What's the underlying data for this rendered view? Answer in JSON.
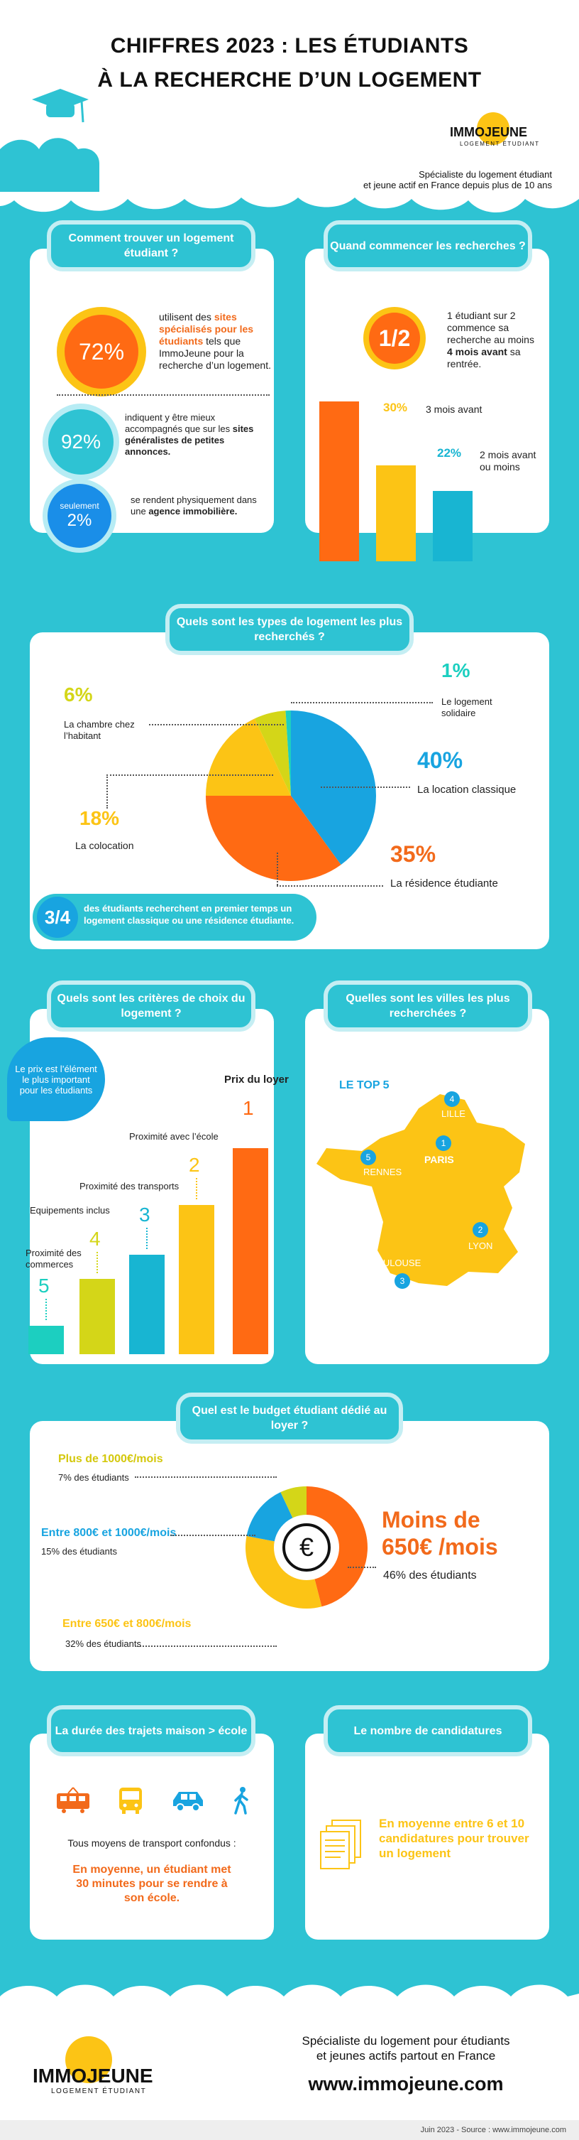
{
  "header": {
    "title_line1": "CHIFFRES 2023 : LES ÉTUDIANTS",
    "title_line2": "À LA RECHERCHE D’UN LOGEMENT",
    "logo_word": "IMMOJEUNE",
    "logo_sub": "LOGEMENT ÉTUDIANT",
    "tagline_line1": "Spécialiste du logement étudiant",
    "tagline_line2": "et jeune actif en France depuis plus de 10 ans"
  },
  "find": {
    "title": "Comment trouver un logement étudiant ?",
    "c1_value": "72%",
    "c1_text_a": "utilisent des ",
    "c1_text_b": "sites spécialisés pour les étudiants",
    "c1_text_c": " tels que ImmoJeune pour la recherche d’un logement.",
    "c2_value": "92%",
    "c2_text_a": "indiquent y être mieux accompagnés que sur les ",
    "c2_text_b": "sites généralistes de petites annonces.",
    "c3_small": "seulement",
    "c3_value": "2%",
    "c3_text_a": "se rendent physiquement dans une ",
    "c3_text_b": "agence immobilière."
  },
  "when": {
    "title": "Quand commencer les recherches ?",
    "half": "1/2",
    "half_text_a": "1 étudiant sur 2 commence sa recherche au moins ",
    "half_text_b": "4 mois avant",
    "half_text_c": " sa rentrée.",
    "p30": "30%",
    "p30_label": "3 mois avant",
    "p22": "22%",
    "p22_label": "2 mois avant ou moins"
  },
  "types": {
    "title": "Quels sont les types de logement les plus recherchés ?",
    "items": [
      {
        "pct": "6%",
        "label": "La chambre chez l’habitant"
      },
      {
        "pct": "1%",
        "label": "Le logement solidaire"
      },
      {
        "pct": "40%",
        "label": "La location classique"
      },
      {
        "pct": "18%",
        "label": "La colocation"
      },
      {
        "pct": "35%",
        "label": "La résidence étudiante"
      }
    ],
    "banner_value": "3/4",
    "banner_text": "des étudiants recherchent en premier temps un logement classique ou une résidence étudiante."
  },
  "criteria": {
    "title": "Quels sont les critères de choix du logement ?",
    "bubble": "Le prix est l’élément le plus important pour les étudiants",
    "ranks": [
      {
        "n": "1",
        "label": "Prix du loyer",
        "color": "#ff6a13"
      },
      {
        "n": "2",
        "label": "Proximité avec l’école",
        "color": "#fcc415"
      },
      {
        "n": "3",
        "label": "Proximité des transports",
        "color": "#18b5d2"
      },
      {
        "n": "4",
        "label": "Equipements inclus",
        "color": "#d4d618"
      },
      {
        "n": "5",
        "label": "Proximité des commerces",
        "color": "#1ccfc0"
      }
    ]
  },
  "cities": {
    "title": "Quelles sont les villes les plus recherchées ?",
    "top": "LE TOP 5",
    "items": [
      {
        "n": "1",
        "name": "PARIS"
      },
      {
        "n": "2",
        "name": "LYON"
      },
      {
        "n": "3",
        "name": "TOULOUSE"
      },
      {
        "n": "4",
        "name": "LILLE"
      },
      {
        "n": "5",
        "name": "RENNES"
      }
    ]
  },
  "budget": {
    "title": "Quel est le budget étudiant dédié au loyer ?",
    "b1_range": "Plus de 1000€/mois",
    "b1_pct": "7% des étudiants",
    "b2_range": "Entre 800€ et 1000€/mois",
    "b2_pct": "15% des étudiants",
    "b3_range": "Entre 650€ et 800€/mois",
    "b3_pct": "32% des étudiants",
    "b4_range_a": "Moins de",
    "b4_range_b": "650€ /mois",
    "b4_pct": "46% des étudiants",
    "euro": "€"
  },
  "commute": {
    "title": "La durée des trajets maison > école",
    "all": "Tous moyens de transport confondus :",
    "result": "En moyenne, un étudiant met 30 minutes pour se rendre à son école."
  },
  "apps": {
    "title": "Le nombre de candidatures",
    "result": "En moyenne entre 6 et 10 candidatures pour trouver un logement"
  },
  "footer": {
    "tag1": "Spécialiste du logement pour étudiants",
    "tag2": "et jeunes actifs partout en France",
    "url": "www.immojeune.com",
    "source": "Juin 2023 - Source : www.immojeune.com"
  },
  "chart_data": [
    {
      "type": "bar",
      "categories": [
        "Au moins 4 mois avant",
        "3 mois avant",
        "2 mois avant ou moins"
      ],
      "values": [
        50,
        30,
        22
      ]
    },
    {
      "type": "pie",
      "categories": [
        "La location classique",
        "La résidence étudiante",
        "La colocation",
        "La chambre chez l’habitant",
        "Le logement solidaire"
      ],
      "values": [
        40,
        35,
        18,
        6,
        1
      ]
    },
    {
      "type": "pie",
      "categories": [
        "Moins de 650€ /mois",
        "Entre 650€ et 800€/mois",
        "Entre 800€ et 1000€/mois",
        "Plus de 1000€/mois"
      ],
      "values": [
        46,
        32,
        15,
        7
      ]
    }
  ]
}
